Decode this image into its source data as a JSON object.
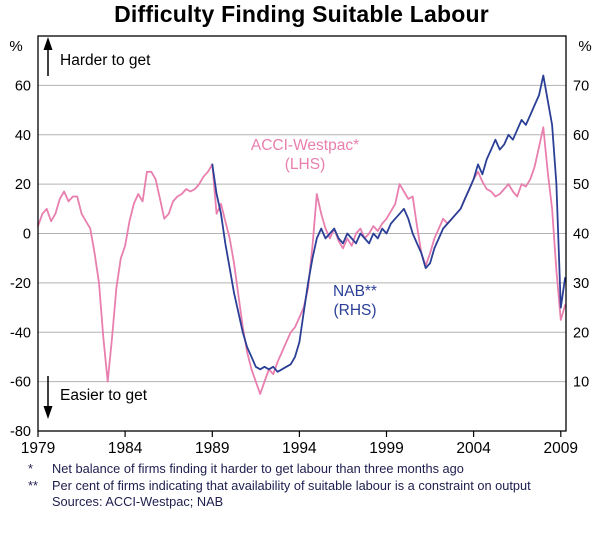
{
  "chart_data": {
    "type": "line",
    "title": "Difficulty Finding Suitable Labour",
    "left_axis": {
      "unit": "%",
      "min": -80,
      "max": 80,
      "ticks": [
        60,
        40,
        20,
        0,
        -20,
        -40,
        -60,
        -80
      ]
    },
    "right_axis": {
      "unit": "%",
      "min": 0,
      "max": 80,
      "ticks": [
        70,
        60,
        50,
        40,
        30,
        20,
        10
      ]
    },
    "x_axis": {
      "min": 1979,
      "max": 2009.3,
      "ticks": [
        1979,
        1984,
        1989,
        1994,
        1999,
        2004,
        2009
      ]
    },
    "grid": "horizontal",
    "series": [
      {
        "id": "acci-westpac",
        "name": "ACCI-Westpac* (LHS)",
        "axis": "left",
        "color": "#e87fae",
        "points": [
          [
            1979,
            3
          ],
          [
            1979.25,
            8
          ],
          [
            1979.5,
            10
          ],
          [
            1979.75,
            5
          ],
          [
            1980,
            8
          ],
          [
            1980.25,
            14
          ],
          [
            1980.5,
            17
          ],
          [
            1980.75,
            13
          ],
          [
            1981,
            15
          ],
          [
            1981.25,
            15
          ],
          [
            1981.5,
            8
          ],
          [
            1981.75,
            5
          ],
          [
            1982,
            2
          ],
          [
            1982.25,
            -8
          ],
          [
            1982.5,
            -20
          ],
          [
            1982.75,
            -42
          ],
          [
            1983,
            -60
          ],
          [
            1983.25,
            -42
          ],
          [
            1983.5,
            -22
          ],
          [
            1983.75,
            -10
          ],
          [
            1984,
            -5
          ],
          [
            1984.25,
            5
          ],
          [
            1984.5,
            12
          ],
          [
            1984.75,
            16
          ],
          [
            1985,
            13
          ],
          [
            1985.25,
            25
          ],
          [
            1985.5,
            25
          ],
          [
            1985.75,
            22
          ],
          [
            1986,
            14
          ],
          [
            1986.25,
            6
          ],
          [
            1986.5,
            8
          ],
          [
            1986.75,
            13
          ],
          [
            1987,
            15
          ],
          [
            1987.25,
            16
          ],
          [
            1987.5,
            18
          ],
          [
            1987.75,
            17
          ],
          [
            1988,
            18
          ],
          [
            1988.25,
            20
          ],
          [
            1988.5,
            23
          ],
          [
            1988.75,
            25
          ],
          [
            1989,
            28
          ],
          [
            1989.25,
            8
          ],
          [
            1989.5,
            12
          ],
          [
            1989.75,
            5
          ],
          [
            1990,
            -2
          ],
          [
            1990.25,
            -12
          ],
          [
            1990.5,
            -25
          ],
          [
            1990.75,
            -38
          ],
          [
            1991,
            -48
          ],
          [
            1991.25,
            -55
          ],
          [
            1991.5,
            -60
          ],
          [
            1991.75,
            -65
          ],
          [
            1992,
            -60
          ],
          [
            1992.25,
            -55
          ],
          [
            1992.5,
            -57
          ],
          [
            1992.75,
            -52
          ],
          [
            1993,
            -48
          ],
          [
            1993.25,
            -44
          ],
          [
            1993.5,
            -40
          ],
          [
            1993.75,
            -38
          ],
          [
            1994,
            -34
          ],
          [
            1994.25,
            -30
          ],
          [
            1994.5,
            -22
          ],
          [
            1994.75,
            -5
          ],
          [
            1995,
            16
          ],
          [
            1995.25,
            8
          ],
          [
            1995.5,
            2
          ],
          [
            1995.75,
            -2
          ],
          [
            1996,
            2
          ],
          [
            1996.25,
            -3
          ],
          [
            1996.5,
            -6
          ],
          [
            1996.75,
            -2
          ],
          [
            1997,
            -5
          ],
          [
            1997.25,
            0
          ],
          [
            1997.5,
            2
          ],
          [
            1997.75,
            -2
          ],
          [
            1998,
            0
          ],
          [
            1998.25,
            3
          ],
          [
            1998.5,
            1
          ],
          [
            1998.75,
            4
          ],
          [
            1999,
            6
          ],
          [
            1999.25,
            9
          ],
          [
            1999.5,
            12
          ],
          [
            1999.75,
            20
          ],
          [
            2000,
            17
          ],
          [
            2000.25,
            14
          ],
          [
            2000.5,
            15
          ],
          [
            2000.75,
            3
          ],
          [
            2001,
            -8
          ],
          [
            2001.25,
            -13
          ],
          [
            2001.5,
            -8
          ],
          [
            2001.75,
            -2
          ],
          [
            2002,
            2
          ],
          [
            2002.25,
            6
          ],
          [
            2002.5,
            4
          ],
          [
            2002.75,
            6
          ],
          [
            2003,
            8
          ],
          [
            2003.25,
            10
          ],
          [
            2003.5,
            14
          ],
          [
            2003.75,
            18
          ],
          [
            2004,
            22
          ],
          [
            2004.25,
            25
          ],
          [
            2004.5,
            21
          ],
          [
            2004.75,
            18
          ],
          [
            2005,
            17
          ],
          [
            2005.25,
            15
          ],
          [
            2005.5,
            16
          ],
          [
            2005.75,
            18
          ],
          [
            2006,
            20
          ],
          [
            2006.25,
            17
          ],
          [
            2006.5,
            15
          ],
          [
            2006.75,
            20
          ],
          [
            2007,
            19
          ],
          [
            2007.25,
            22
          ],
          [
            2007.5,
            27
          ],
          [
            2007.75,
            35
          ],
          [
            2008,
            43
          ],
          [
            2008.25,
            25
          ],
          [
            2008.5,
            10
          ],
          [
            2008.75,
            -15
          ],
          [
            2009,
            -35
          ],
          [
            2009.25,
            -29
          ]
        ]
      },
      {
        "id": "nab",
        "name": "NAB** (RHS)",
        "axis": "right",
        "color": "#2b3f96",
        "points": [
          [
            1989,
            54
          ],
          [
            1989.25,
            48
          ],
          [
            1989.5,
            44
          ],
          [
            1989.75,
            38
          ],
          [
            1990,
            33
          ],
          [
            1990.25,
            28
          ],
          [
            1990.5,
            24
          ],
          [
            1990.75,
            20
          ],
          [
            1991,
            17
          ],
          [
            1991.25,
            15
          ],
          [
            1991.5,
            13
          ],
          [
            1991.75,
            12.5
          ],
          [
            1992,
            13
          ],
          [
            1992.25,
            12.5
          ],
          [
            1992.5,
            13
          ],
          [
            1992.75,
            12
          ],
          [
            1993,
            12.5
          ],
          [
            1993.25,
            13
          ],
          [
            1993.5,
            13.5
          ],
          [
            1993.75,
            15
          ],
          [
            1994,
            18
          ],
          [
            1994.25,
            24
          ],
          [
            1994.5,
            30
          ],
          [
            1994.75,
            35
          ],
          [
            1995,
            39
          ],
          [
            1995.25,
            41
          ],
          [
            1995.5,
            39
          ],
          [
            1995.75,
            40
          ],
          [
            1996,
            41
          ],
          [
            1996.25,
            39
          ],
          [
            1996.5,
            38
          ],
          [
            1996.75,
            40
          ],
          [
            1997,
            39
          ],
          [
            1997.25,
            38
          ],
          [
            1997.5,
            40
          ],
          [
            1997.75,
            39
          ],
          [
            1998,
            38
          ],
          [
            1998.25,
            40
          ],
          [
            1998.5,
            39
          ],
          [
            1998.75,
            41
          ],
          [
            1999,
            40
          ],
          [
            1999.25,
            42
          ],
          [
            1999.5,
            43
          ],
          [
            1999.75,
            44
          ],
          [
            2000,
            45
          ],
          [
            2000.25,
            43
          ],
          [
            2000.5,
            40
          ],
          [
            2000.75,
            38
          ],
          [
            2001,
            36
          ],
          [
            2001.25,
            33
          ],
          [
            2001.5,
            34
          ],
          [
            2001.75,
            37
          ],
          [
            2002,
            39
          ],
          [
            2002.25,
            41
          ],
          [
            2002.5,
            42
          ],
          [
            2002.75,
            43
          ],
          [
            2003,
            44
          ],
          [
            2003.25,
            45
          ],
          [
            2003.5,
            47
          ],
          [
            2003.75,
            49
          ],
          [
            2004,
            51
          ],
          [
            2004.25,
            54
          ],
          [
            2004.5,
            52
          ],
          [
            2004.75,
            55
          ],
          [
            2005,
            57
          ],
          [
            2005.25,
            59
          ],
          [
            2005.5,
            57
          ],
          [
            2005.75,
            58
          ],
          [
            2006,
            60
          ],
          [
            2006.25,
            59
          ],
          [
            2006.5,
            61
          ],
          [
            2006.75,
            63
          ],
          [
            2007,
            62
          ],
          [
            2007.25,
            64
          ],
          [
            2007.5,
            66
          ],
          [
            2007.75,
            68
          ],
          [
            2008,
            72
          ],
          [
            2008.25,
            67
          ],
          [
            2008.5,
            62
          ],
          [
            2008.75,
            50
          ],
          [
            2009,
            25
          ],
          [
            2009.25,
            31
          ]
        ]
      }
    ]
  },
  "annotations": {
    "harder": "Harder to get",
    "easier": "Easier to get",
    "acci_line1": "ACCI-Westpac*",
    "acci_line2": "(LHS)",
    "nab_line1": "NAB**",
    "nab_line2": "(RHS)"
  },
  "footnotes": [
    {
      "marker": "*",
      "text": "Net balance of firms finding it harder to get labour than three months ago"
    },
    {
      "marker": "**",
      "text": "Per cent of firms indicating that availability of suitable labour is a constraint on output"
    }
  ],
  "source": "Sources: ACCI-Westpac; NAB"
}
